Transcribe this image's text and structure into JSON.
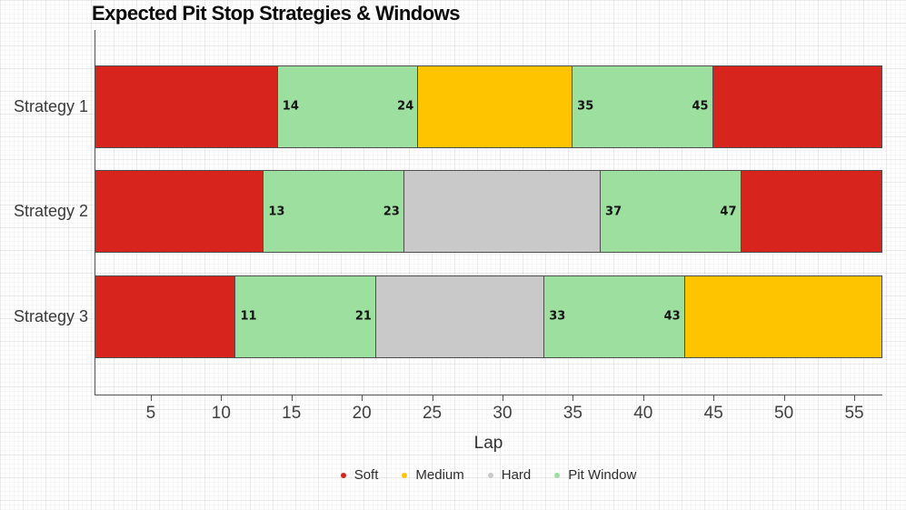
{
  "chart_data": {
    "type": "bar",
    "variant": "horizontal-stacked-gantt",
    "title": "Expected Pit Stop Strategies & Windows",
    "xlabel": "Lap",
    "xlim": [
      1,
      57
    ],
    "xticks": [
      5,
      10,
      15,
      20,
      25,
      30,
      35,
      40,
      45,
      50,
      55
    ],
    "grid": "fine graph-paper background",
    "legend_position": "bottom-center",
    "colors": {
      "soft": "#d7251d",
      "medium": "#ffc400",
      "hard": "#c9c9c9",
      "pit_window": "#9cdf9f",
      "border": "#4d4d4d",
      "axis": "#555555"
    },
    "legend": [
      {
        "label": "Soft",
        "color_key": "soft"
      },
      {
        "label": "Medium",
        "color_key": "medium"
      },
      {
        "label": "Hard",
        "color_key": "hard"
      },
      {
        "label": "Pit Window",
        "color_key": "pit_window"
      }
    ],
    "categories": [
      "Strategy 1",
      "Strategy 2",
      "Strategy 3"
    ],
    "rows": [
      {
        "category": "Strategy 1",
        "segments": [
          {
            "kind": "soft",
            "start": 1,
            "end": 14
          },
          {
            "kind": "pit_window",
            "start": 14,
            "end": 24,
            "start_label": "14",
            "end_label": "24"
          },
          {
            "kind": "medium",
            "start": 24,
            "end": 35
          },
          {
            "kind": "pit_window",
            "start": 35,
            "end": 45,
            "start_label": "35",
            "end_label": "45"
          },
          {
            "kind": "soft",
            "start": 45,
            "end": 57
          }
        ]
      },
      {
        "category": "Strategy 2",
        "segments": [
          {
            "kind": "soft",
            "start": 1,
            "end": 13
          },
          {
            "kind": "pit_window",
            "start": 13,
            "end": 23,
            "start_label": "13",
            "end_label": "23"
          },
          {
            "kind": "hard",
            "start": 23,
            "end": 37
          },
          {
            "kind": "pit_window",
            "start": 37,
            "end": 47,
            "start_label": "37",
            "end_label": "47"
          },
          {
            "kind": "soft",
            "start": 47,
            "end": 57
          }
        ]
      },
      {
        "category": "Strategy 3",
        "segments": [
          {
            "kind": "soft",
            "start": 1,
            "end": 11
          },
          {
            "kind": "pit_window",
            "start": 11,
            "end": 21,
            "start_label": "11",
            "end_label": "21"
          },
          {
            "kind": "hard",
            "start": 21,
            "end": 33
          },
          {
            "kind": "pit_window",
            "start": 33,
            "end": 43,
            "start_label": "33",
            "end_label": "43"
          },
          {
            "kind": "medium",
            "start": 43,
            "end": 57
          }
        ]
      }
    ]
  }
}
